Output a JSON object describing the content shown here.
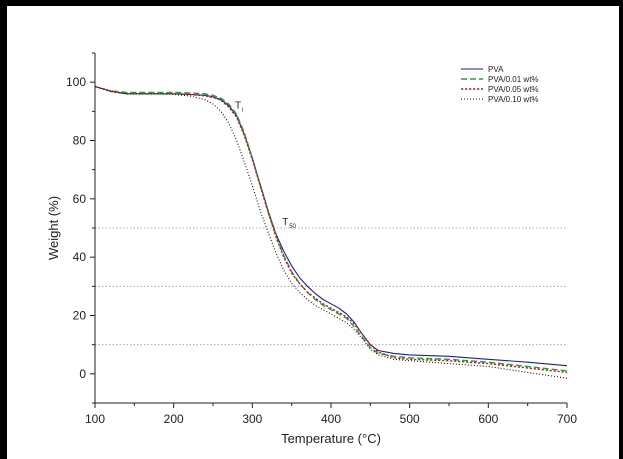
{
  "chart_data": {
    "type": "line",
    "xlabel": "Temperature (°C)",
    "ylabel": "Weight (%)",
    "xlim": [
      100,
      700
    ],
    "ylim": [
      -10,
      110
    ],
    "xticks": [
      100,
      200,
      300,
      400,
      500,
      600,
      700
    ],
    "yticks": [
      0,
      20,
      40,
      60,
      80,
      100
    ],
    "reference_lines": [
      50,
      30,
      10
    ],
    "legend_position": "top-right",
    "annotations": [
      {
        "main": "T",
        "sub": "i",
        "x": 278,
        "y": 91
      },
      {
        "main": "T",
        "sub": "50",
        "x": 338,
        "y": 51
      }
    ],
    "series": [
      {
        "name": "PVA",
        "color": "#1f1f9a",
        "style": "solid",
        "x": [
          100,
          120,
          140,
          160,
          180,
          200,
          220,
          240,
          250,
          260,
          270,
          280,
          290,
          300,
          310,
          320,
          330,
          340,
          350,
          360,
          370,
          380,
          390,
          400,
          410,
          420,
          430,
          440,
          450,
          460,
          480,
          500,
          550,
          600,
          650,
          700
        ],
        "y": [
          98.5,
          97,
          96,
          96,
          96,
          96,
          95.8,
          95.5,
          95,
          94,
          92,
          88.5,
          82,
          74,
          65,
          56,
          48,
          42,
          37,
          33,
          30,
          27.5,
          25.5,
          24,
          22.5,
          20.5,
          17.5,
          13.5,
          10,
          8,
          7,
          6.5,
          6,
          5,
          4,
          2.8
        ]
      },
      {
        "name": "PVA/0.01 wt%",
        "color": "#2ca02c",
        "style": "dashed",
        "x": [
          100,
          120,
          140,
          160,
          180,
          200,
          220,
          240,
          250,
          260,
          270,
          280,
          290,
          300,
          310,
          320,
          330,
          340,
          350,
          360,
          370,
          380,
          390,
          400,
          410,
          420,
          430,
          440,
          450,
          460,
          480,
          500,
          550,
          600,
          650,
          700
        ],
        "y": [
          98.5,
          97,
          96.5,
          96.5,
          96.5,
          96.5,
          96.3,
          96,
          95.5,
          94.5,
          92.5,
          89,
          82.5,
          74,
          64.5,
          55.5,
          47.5,
          40.5,
          35,
          31,
          28,
          25.5,
          23.5,
          22,
          20.5,
          19,
          16,
          12.5,
          9,
          7,
          6,
          5.5,
          5,
          4,
          2.5,
          1
        ]
      },
      {
        "name": "PVA/0.05 wt%",
        "color": "#b22222",
        "style": "dotted",
        "x": [
          100,
          120,
          140,
          160,
          180,
          200,
          220,
          240,
          250,
          260,
          270,
          280,
          290,
          300,
          310,
          320,
          330,
          340,
          350,
          360,
          370,
          380,
          390,
          400,
          410,
          420,
          430,
          440,
          450,
          460,
          480,
          500,
          550,
          600,
          650,
          700
        ],
        "y": [
          98.5,
          96.8,
          96,
          96,
          96,
          96,
          95.8,
          95.3,
          94.8,
          93.8,
          91.5,
          88,
          81.5,
          73.5,
          64.5,
          55.5,
          47,
          40,
          34.5,
          31,
          28,
          26,
          24,
          22.5,
          21,
          19.5,
          17,
          13.5,
          10,
          7.5,
          5.5,
          5,
          4.5,
          3.5,
          2,
          0.5
        ]
      },
      {
        "name": "PVA/0.10 wt%",
        "color": "#111111",
        "style": "fine-dotted",
        "x": [
          100,
          120,
          140,
          160,
          180,
          200,
          220,
          240,
          250,
          260,
          270,
          280,
          290,
          300,
          310,
          320,
          330,
          340,
          350,
          360,
          370,
          380,
          390,
          400,
          410,
          420,
          430,
          440,
          450,
          460,
          480,
          500,
          550,
          600,
          650,
          700
        ],
        "y": [
          98.5,
          96.8,
          96,
          96,
          96,
          95.8,
          95.3,
          94,
          92.5,
          90,
          86,
          80,
          72.5,
          64.5,
          56,
          48.5,
          41.5,
          35.5,
          31,
          28,
          25.5,
          23.5,
          22,
          20.5,
          19,
          17.5,
          15,
          12,
          8.5,
          6.5,
          5,
          4.5,
          3.5,
          2.5,
          0.5,
          -1.5
        ]
      }
    ]
  }
}
